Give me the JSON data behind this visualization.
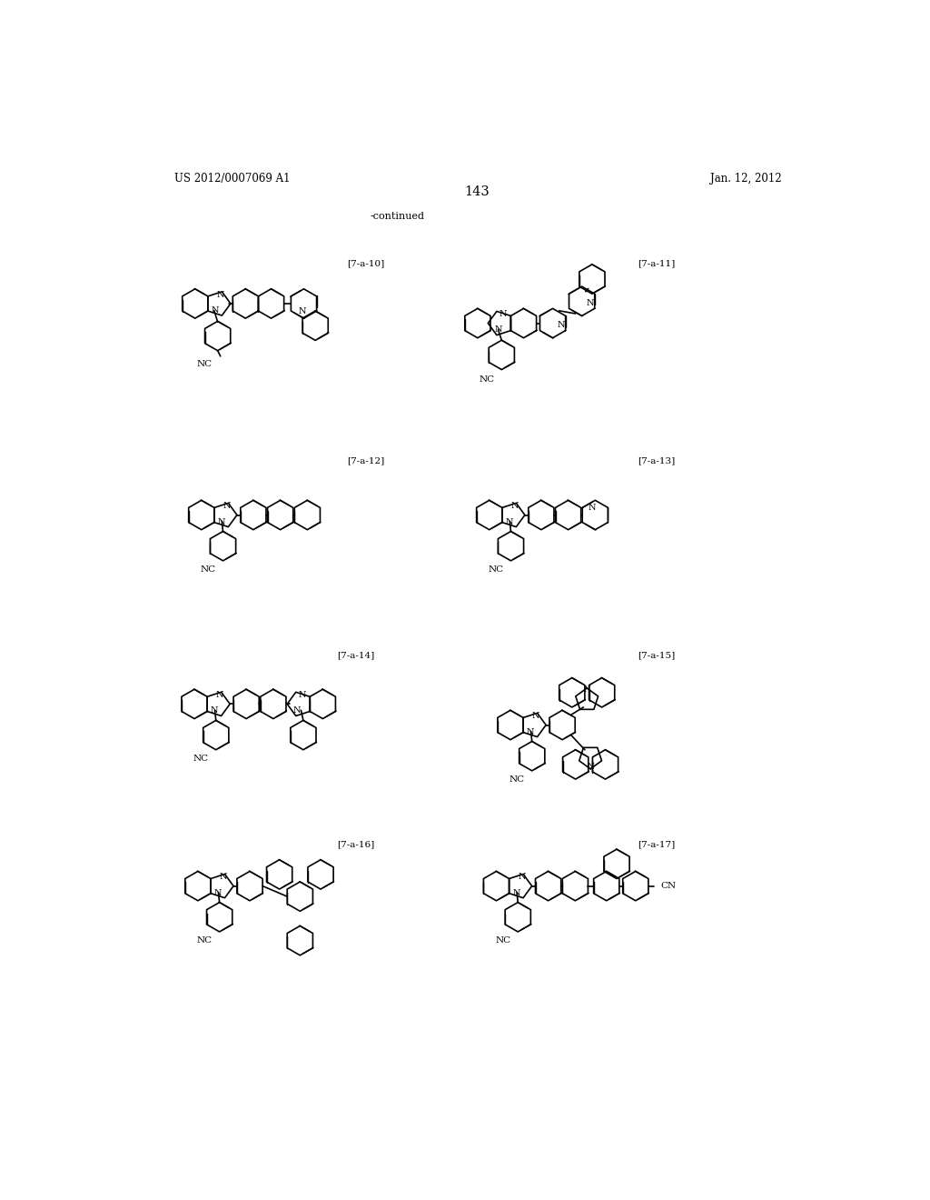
{
  "header_left": "US 2012/0007069 A1",
  "header_right": "Jan. 12, 2012",
  "page_number": "143",
  "continued_label": "-continued",
  "background_color": "#ffffff",
  "text_color": "#000000",
  "label_10": "[7-a-10]",
  "label_11": "[7-a-11]",
  "label_12": "[7-a-12]",
  "label_13": "[7-a-13]",
  "label_14": "[7-a-14]",
  "label_15": "[7-a-15]",
  "label_16": "[7-a-16]",
  "label_17": "[7-a-17]"
}
